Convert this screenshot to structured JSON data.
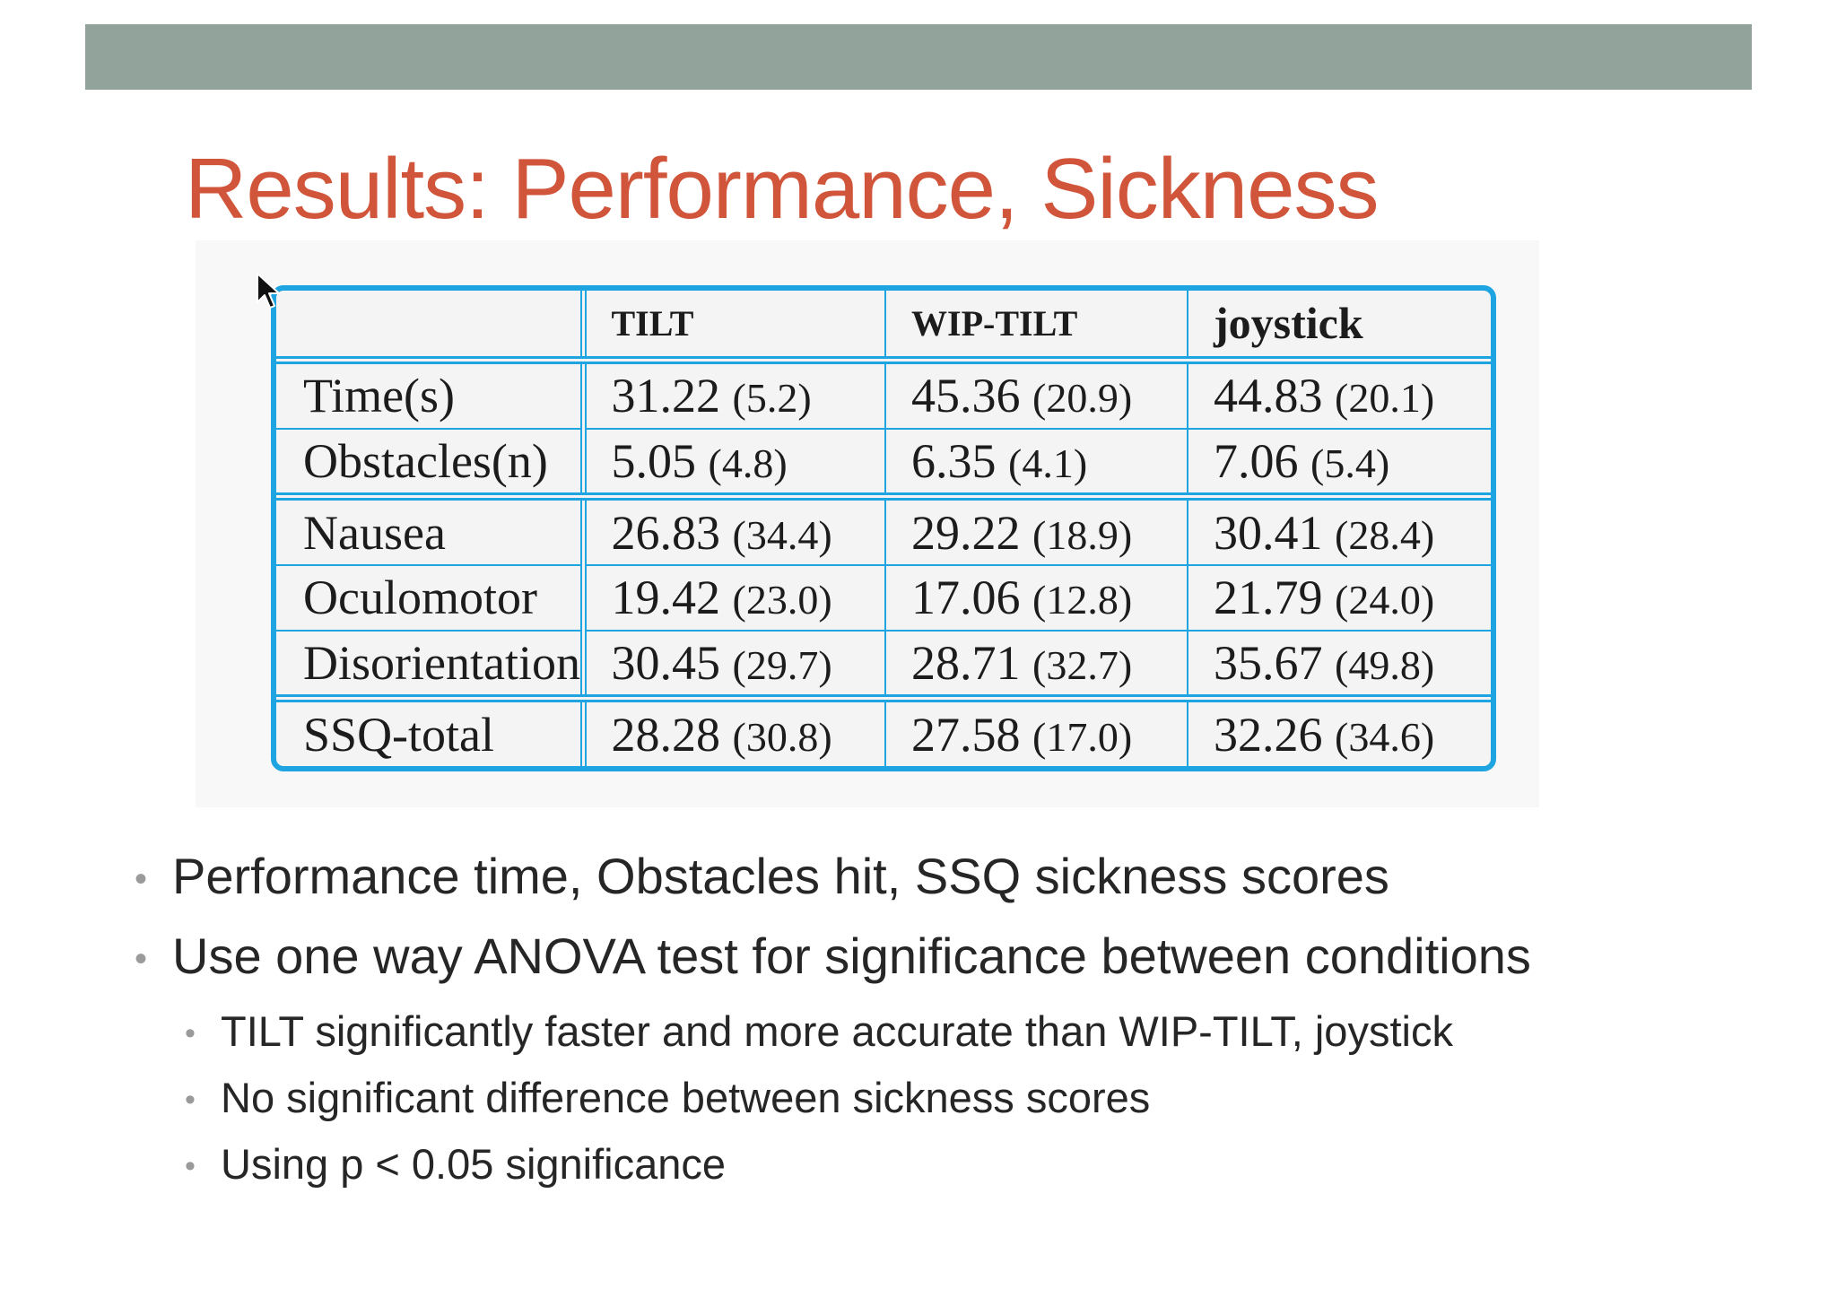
{
  "slide": {
    "title": "Results: Performance, Sickness",
    "colors": {
      "top_bar": "#91a39a",
      "title": "#d1553b",
      "table_border": "#1ea4e0",
      "text": "#262626"
    }
  },
  "table": {
    "headers": [
      "",
      "TILT",
      "WIP-TILT",
      "joystick"
    ],
    "rows": [
      {
        "label": "Time(s)",
        "cells": [
          {
            "v": "31.22",
            "sd": "(5.2)"
          },
          {
            "v": "45.36",
            "sd": "(20.9)"
          },
          {
            "v": "44.83",
            "sd": "(20.1)"
          }
        ]
      },
      {
        "label": "Obstacles(n)",
        "cells": [
          {
            "v": "5.05",
            "sd": "(4.8)"
          },
          {
            "v": "6.35",
            "sd": "(4.1)"
          },
          {
            "v": "7.06",
            "sd": "(5.4)"
          }
        ]
      },
      {
        "label": "Nausea",
        "cells": [
          {
            "v": "26.83",
            "sd": "(34.4)"
          },
          {
            "v": "29.22",
            "sd": "(18.9)"
          },
          {
            "v": "30.41",
            "sd": "(28.4)"
          }
        ]
      },
      {
        "label": "Oculomotor",
        "cells": [
          {
            "v": "19.42",
            "sd": "(23.0)"
          },
          {
            "v": "17.06",
            "sd": "(12.8)"
          },
          {
            "v": "21.79",
            "sd": "(24.0)"
          }
        ]
      },
      {
        "label": "Disorientation",
        "cells": [
          {
            "v": "30.45",
            "sd": "(29.7)"
          },
          {
            "v": "28.71",
            "sd": "(32.7)"
          },
          {
            "v": "35.67",
            "sd": "(49.8)"
          }
        ]
      },
      {
        "label": "SSQ-total",
        "cells": [
          {
            "v": "28.28",
            "sd": "(30.8)"
          },
          {
            "v": "27.58",
            "sd": "(17.0)"
          },
          {
            "v": "32.26",
            "sd": "(34.6)"
          }
        ]
      }
    ]
  },
  "bullets": [
    {
      "text": "Performance time, Obstacles hit, SSQ sickness scores",
      "sub": []
    },
    {
      "text": "Use one way ANOVA test for significance between conditions",
      "sub": [
        "TILT significantly faster and more accurate than WIP-TILT, joystick",
        "No significant difference between sickness scores",
        "Using p < 0.05 significance"
      ]
    }
  ],
  "icons": {
    "bullet": "bullet-dot-icon",
    "cursor": "mouse-cursor-icon"
  }
}
